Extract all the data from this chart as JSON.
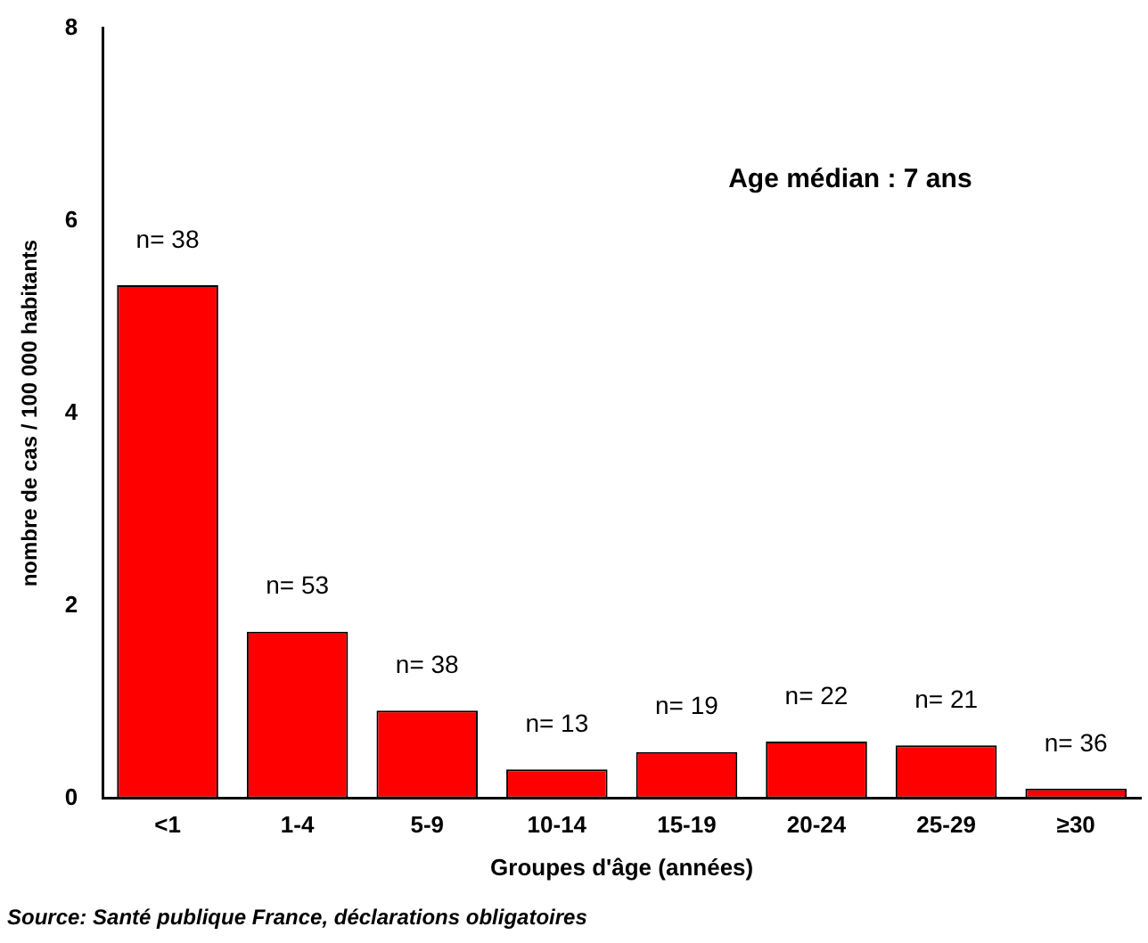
{
  "chart_data": {
    "type": "bar",
    "xlabel": "Groupes d'âge (années)",
    "ylabel": "nombre de cas / 100 000 habitants",
    "categories": [
      "<1",
      "1-4",
      "5-9",
      "10-14",
      "15-19",
      "20-24",
      "25-29",
      "≥30"
    ],
    "values": [
      5.33,
      1.73,
      0.91,
      0.3,
      0.48,
      0.59,
      0.55,
      0.1
    ],
    "color": "#ff0000",
    "ylim": [
      0,
      8
    ],
    "yticks": [
      0,
      2,
      4,
      6,
      8
    ],
    "grid": false,
    "legend": false,
    "annotations": [
      "Age médian : 7 ans",
      "Source: Santé publique France, déclarations obligatoires",
      "n= 38",
      "n= 53",
      "n= 38",
      "n= 13",
      "n= 19",
      "n= 22",
      "n= 21",
      "n= 36"
    ]
  }
}
